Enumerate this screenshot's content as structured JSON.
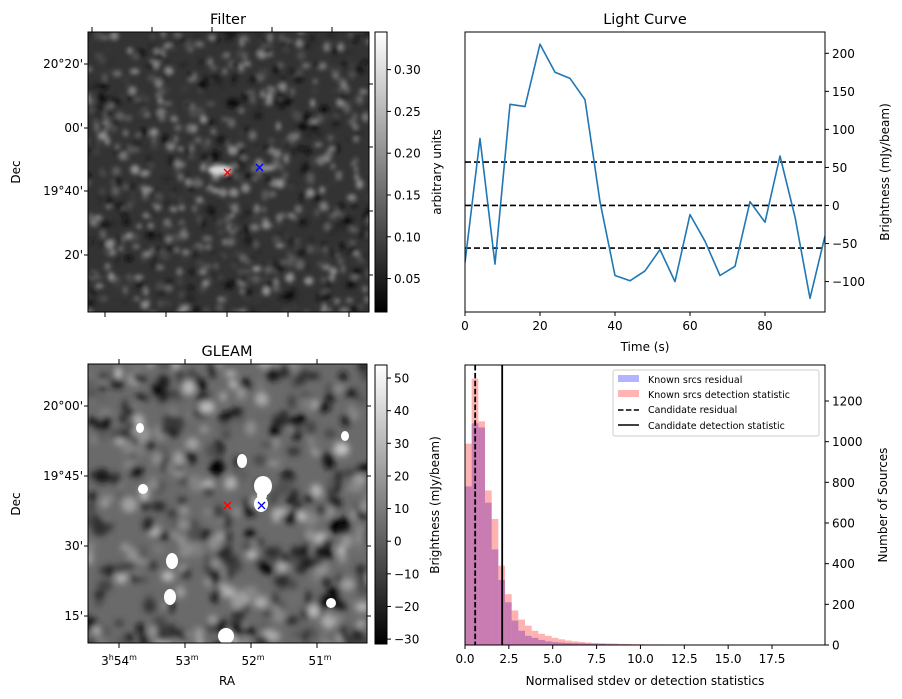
{
  "chart_data": [
    {
      "id": "filter",
      "type": "heatmap",
      "title": "Filter",
      "xlabel": "",
      "ylabel": "Dec",
      "ytick_labels": [
        "20°20'",
        "00'",
        "19°40'",
        "20'"
      ],
      "colormap": "gray",
      "colorbar": {
        "label": "arbitrary units",
        "ticks": [
          "0.30",
          "0.25",
          "0.20",
          "0.15",
          "0.10",
          "0.05"
        ],
        "tick_values": [
          0.3,
          0.25,
          0.2,
          0.15,
          0.1,
          0.05
        ],
        "range": [
          0.01,
          0.345
        ]
      },
      "markers": [
        {
          "name": "candidate",
          "symbol": "x",
          "color": "#ff0000"
        },
        {
          "name": "known-source",
          "symbol": "x",
          "color": "#0000ff"
        }
      ]
    },
    {
      "id": "light-curve",
      "type": "line",
      "title": "Light Curve",
      "xlabel": "Time (s)",
      "ylabel": "Brightness (mJy/beam)",
      "xlim": [
        0,
        96
      ],
      "ylim": [
        -140,
        228
      ],
      "xticks": [
        0,
        20,
        40,
        60,
        80
      ],
      "yticks": [
        -100,
        -50,
        0,
        50,
        100,
        150,
        200
      ],
      "ytick_labels": [
        "−100",
        "−50",
        "0",
        "50",
        "100",
        "150",
        "200"
      ],
      "yaxis_side": "right",
      "series": [
        {
          "name": "light curve",
          "color": "#1f77b4",
          "x": [
            0,
            4,
            8,
            12,
            16,
            20,
            24,
            28,
            32,
            36,
            40,
            44,
            48,
            52,
            56,
            60,
            64,
            68,
            72,
            76,
            80,
            84,
            88,
            92,
            96
          ],
          "values": [
            -75,
            88,
            -77,
            133,
            130,
            212,
            175,
            167,
            139,
            5,
            -92,
            -99,
            -86,
            -58,
            -100,
            -12,
            -47,
            -92,
            -80,
            5,
            -22,
            65,
            -15,
            -122,
            -40
          ]
        }
      ],
      "hlines": [
        {
          "name": "upper-threshold",
          "value": 57,
          "style": "dashed",
          "color": "#000000"
        },
        {
          "name": "zero-line",
          "value": 0,
          "style": "dashed",
          "color": "#000000"
        },
        {
          "name": "lower-threshold",
          "value": -56,
          "style": "dashed",
          "color": "#000000"
        }
      ]
    },
    {
      "id": "gleam",
      "type": "heatmap",
      "title": "GLEAM",
      "xlabel": "RA",
      "ylabel": "Dec",
      "xtick_labels": [
        {
          "h": "3",
          "m": "54"
        },
        {
          "h": "",
          "m": "53"
        },
        {
          "h": "",
          "m": "52"
        },
        {
          "h": "",
          "m": "51"
        }
      ],
      "ytick_labels": [
        "20°00'",
        "19°45'",
        "30'",
        "15'"
      ],
      "colormap": "gray",
      "colorbar": {
        "label": "Brightness (mJy/beam)",
        "ticks": [
          "50",
          "40",
          "30",
          "20",
          "10",
          "0",
          "−10",
          "−20",
          "−30"
        ],
        "tick_values": [
          50,
          40,
          30,
          20,
          10,
          0,
          -10,
          -20,
          -30
        ],
        "range": [
          -31.5,
          54
        ]
      },
      "markers": [
        {
          "name": "candidate",
          "symbol": "x",
          "color": "#ff0000"
        },
        {
          "name": "known-source",
          "symbol": "x",
          "color": "#0000ff"
        }
      ]
    },
    {
      "id": "histogram",
      "type": "bar",
      "title": "",
      "xlabel": "Normalised stdev or detection statistics",
      "ylabel": "Number of Sources",
      "xlim": [
        0,
        20
      ],
      "ylim": [
        0,
        1377
      ],
      "xticks": [
        0,
        2.5,
        5,
        7.5,
        10,
        12.5,
        15,
        17.5
      ],
      "xtick_labels": [
        "0.0",
        "2.5",
        "5.0",
        "7.5",
        "10.0",
        "12.5",
        "15.0",
        "17.5"
      ],
      "yticks": [
        0,
        200,
        400,
        600,
        800,
        1000,
        1200
      ],
      "yaxis_side": "right",
      "bin_width": 0.38,
      "series": [
        {
          "name": "Known srcs residual",
          "color": "#0000ff",
          "alpha": 0.3,
          "bin_start": 0.0,
          "bin_width": 0.38,
          "values": [
            780,
            1090,
            1070,
            700,
            470,
            320,
            210,
            120,
            70,
            45,
            35,
            25,
            18,
            14,
            12,
            10,
            9,
            8,
            7,
            6,
            5,
            4,
            4,
            3,
            3,
            2,
            2,
            2,
            2,
            1,
            1,
            1,
            1,
            1,
            1,
            0,
            0,
            0,
            0,
            0,
            0,
            0,
            0,
            0,
            0,
            0,
            0,
            0,
            0,
            0,
            0
          ]
        },
        {
          "name": "Known srcs detection statistic",
          "color": "#ff0000",
          "alpha": 0.3,
          "bin_start": 0.0,
          "bin_width": 0.38,
          "values": [
            990,
            1310,
            1100,
            760,
            620,
            390,
            250,
            170,
            125,
            95,
            70,
            55,
            45,
            35,
            28,
            22,
            18,
            15,
            12,
            10,
            9,
            8,
            7,
            6,
            5,
            4,
            4,
            3,
            3,
            3,
            2,
            2,
            2,
            2,
            2,
            2,
            2,
            2,
            2,
            2,
            2,
            2,
            2,
            2,
            2,
            2,
            2,
            2,
            2,
            2,
            2
          ]
        }
      ],
      "vlines": [
        {
          "name": "Candidate residual",
          "value": 0.58,
          "style": "dashed",
          "color": "#000000"
        },
        {
          "name": "Candidate detection statistic",
          "value": 2.12,
          "style": "solid",
          "color": "#000000"
        }
      ],
      "legend": {
        "placement": "top-right",
        "entries": [
          {
            "label": "Known srcs residual",
            "kind": "patch",
            "color": "#b3b3ff"
          },
          {
            "label": "Known srcs detection statistic",
            "kind": "patch",
            "color": "#ffb3b3"
          },
          {
            "label": "Candidate residual",
            "kind": "dashed-line",
            "color": "#000000"
          },
          {
            "label": "Candidate detection statistic",
            "kind": "solid-line",
            "color": "#000000"
          }
        ]
      }
    }
  ]
}
